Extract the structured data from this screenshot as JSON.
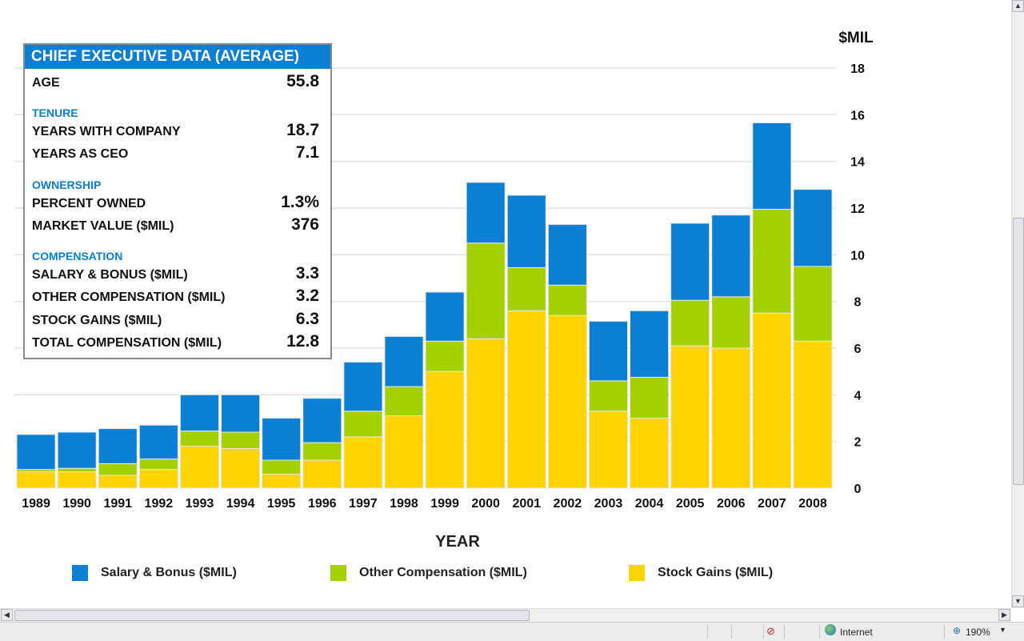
{
  "chart_data": {
    "type": "bar",
    "stacked": true,
    "categories": [
      "1989",
      "1990",
      "1991",
      "1992",
      "1993",
      "1994",
      "1995",
      "1996",
      "1997",
      "1998",
      "1999",
      "2000",
      "2001",
      "2002",
      "2003",
      "2004",
      "2005",
      "2006",
      "2007",
      "2008"
    ],
    "series": [
      {
        "name": "Stock Gains ($MIL)",
        "color": "#ffd400",
        "values": [
          0.7,
          0.7,
          0.55,
          0.8,
          1.8,
          1.7,
          0.6,
          1.2,
          2.2,
          3.1,
          5.0,
          6.4,
          7.6,
          7.4,
          3.3,
          3.0,
          6.1,
          6.0,
          7.5,
          6.3
        ]
      },
      {
        "name": "Other Compensation ($MIL)",
        "color": "#a4d100",
        "values": [
          0.1,
          0.15,
          0.5,
          0.45,
          0.65,
          0.7,
          0.6,
          0.75,
          1.1,
          1.25,
          1.3,
          4.1,
          1.85,
          1.3,
          1.3,
          1.75,
          1.95,
          2.2,
          4.45,
          3.2
        ]
      },
      {
        "name": "Salary & Bonus ($MIL)",
        "color": "#0a7fd4",
        "values": [
          1.5,
          1.55,
          1.5,
          1.45,
          1.55,
          1.6,
          1.8,
          1.9,
          2.1,
          2.15,
          2.1,
          2.6,
          3.1,
          2.6,
          2.55,
          2.85,
          3.3,
          3.5,
          3.7,
          3.3
        ]
      }
    ],
    "xlabel": "YEAR",
    "ylabel": "$MIL",
    "ylim": [
      0,
      18
    ],
    "yticks": [
      "0",
      "2",
      "4",
      "6",
      "8",
      "10",
      "12",
      "14",
      "16",
      "18"
    ],
    "grid": true,
    "legend_position": "bottom",
    "legend_order": [
      "Salary & Bonus ($MIL)",
      "Other Compensation ($MIL)",
      "Stock Gains ($MIL)"
    ]
  },
  "info": {
    "title": "CHIEF EXECUTIVE DATA (AVERAGE)",
    "age_label": "AGE",
    "age": "55.8",
    "tenure": "TENURE",
    "years_company_label": "YEARS WITH COMPANY",
    "years_company": "18.7",
    "years_ceo_label": "YEARS AS CEO",
    "years_ceo": "7.1",
    "ownership": "OWNERSHIP",
    "pct_label": "PERCENT OWNED",
    "pct": "1.3%",
    "mv_label": "MARKET VALUE ($MIL)",
    "mv": "376",
    "compensation": "COMPENSATION",
    "sal_label": "SALARY & BONUS ($MIL)",
    "sal": "3.3",
    "oth_label": "OTHER COMPENSATION ($MIL)",
    "oth": "3.2",
    "stk_label": "STOCK GAINS ($MIL)",
    "stk": "6.3",
    "tot_label": "TOTAL COMPENSATION ($MIL)",
    "tot": "12.8"
  },
  "status": {
    "zone": "Internet",
    "zoom": "190%"
  }
}
